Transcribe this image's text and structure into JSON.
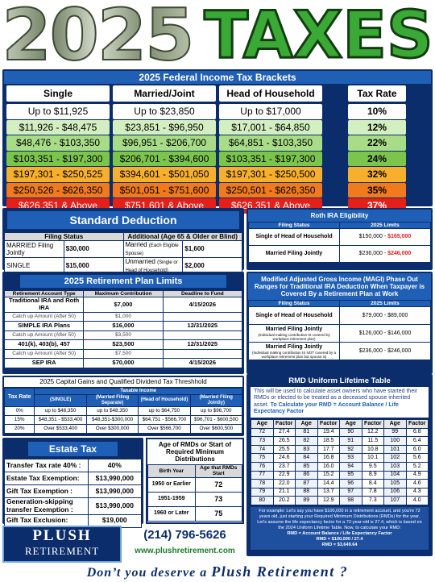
{
  "header": {
    "year": "2025",
    "title": "TAXES"
  },
  "brackets": {
    "title": "2025 Federal Income Tax Brackets",
    "columns": [
      "Single",
      "Married/Joint",
      "Head of Household",
      "Tax Rate"
    ],
    "rows": [
      [
        "Up to $11,925",
        "Up to $23,850",
        "Up to $17,000",
        "10%"
      ],
      [
        "$11,926 - $48,475",
        "$23,851 - $96,950",
        "$17,001 - $64,850",
        "12%"
      ],
      [
        "$48,476 - $103,350",
        "$96,951 - $206,700",
        "$64,851 - $103,350",
        "22%"
      ],
      [
        "$103,351 - $197,300",
        "$206,701 - $394,600",
        "$103,351 - $197,300",
        "24%"
      ],
      [
        "$197,301 - $250,525",
        "$394,601 - $501,050",
        "$197,301 - $250,500",
        "32%"
      ],
      [
        "$250,526 - $626,350",
        "$501,051 - $751,600",
        "$250,501 - $626,350",
        "35%"
      ],
      [
        "$626,351 & Above",
        "$751,601 & Above",
        "$626,351 & Above",
        "37%"
      ]
    ]
  },
  "standard_deduction": {
    "title": "Standard Deduction",
    "columns": [
      "Filing Status",
      "Additional (Age 65 & Older or Blind)"
    ],
    "rows": [
      {
        "status": "MARRIED Filing Jointly",
        "amount": "$30,000",
        "additional_status": "Married",
        "additional_note": "(Each Eligible Spouse)",
        "additional_amount": "$1,600"
      },
      {
        "status": "SINGLE",
        "amount": "$15,000",
        "additional_status": "Unmarried",
        "additional_note": "(Single or Head of Household)",
        "additional_amount": "$2,000"
      }
    ]
  },
  "roth_ira": {
    "title": "Roth IRA Eligibility",
    "columns": [
      "Filing Status",
      "2025 Limits"
    ],
    "rows": [
      {
        "status": "Single of Head of Household",
        "limit_from": "$150,000 -",
        "limit_to": "$165,000"
      },
      {
        "status": "Married Filing Jointly",
        "limit_from": "$236,000 -",
        "limit_to": "$246,000"
      }
    ]
  },
  "retirement_limits": {
    "title": "2025 Retirement Plan Limits",
    "columns": [
      "Retirement Account Type",
      "Maximum Contribution",
      "Deadline to Fund"
    ],
    "rows": [
      {
        "account": "Traditional IRA and Roth IRA",
        "max": "$7,000",
        "deadline": "4/15/2026"
      },
      {
        "account": "Catch up Amount (After 50)",
        "max": "$1,000"
      },
      {
        "account": "SIMPLE IRA Plans",
        "max": "$16,000",
        "deadline": "12/31/2025"
      },
      {
        "account": "Catch up Amount (After 50)",
        "max": "$3,500"
      },
      {
        "account": "401(k), 403(b), 457",
        "max": "$23,500",
        "deadline": "12/31/2025"
      },
      {
        "account": "Catch up Amount (After 50)",
        "max": "$7,500"
      },
      {
        "account": "SEP IRA",
        "max": "$70,000",
        "deadline": "4/15/2026"
      }
    ]
  },
  "magi": {
    "title": "Modified Adjusted Gross Income (MAGI) Phase Out Ranges for Traditional IRA Deduction When Taxpayer is Covered By a Retirement Plan at Work",
    "columns": [
      "Filing Status",
      "2025 Limits"
    ],
    "rows": [
      {
        "status": "Single of Head of Household",
        "limit": "$79,000 - $89,000"
      },
      {
        "status": "Married Filing Jointly",
        "note": "(Individual making contribution IS covered by workplace retirement plan)",
        "limit": "$126,000 - $146,000"
      },
      {
        "status": "Married Filing Jointly",
        "note": "(Individual making contribution IS NOT covered by a workplace retirement plan but spouse is)",
        "limit": "$236,000 - $246,000"
      }
    ]
  },
  "capital_gains": {
    "title": "2025 Capital Gains and Qualified Dividend Tax Threshhold",
    "group": "Taxable Income",
    "columns": [
      "Tax Rate",
      "(SINGLE)",
      "(Married Filing Separate)",
      "(Head of Household)",
      "(Married Filing Jointly)"
    ],
    "rows": [
      [
        "0%",
        "up to $48,350",
        "up to $48,350",
        "up to $64,750",
        "up to $96,700"
      ],
      [
        "15%",
        "$48,351 - $533,400",
        "$48,351-$300,000",
        "$64,751 - $566,700",
        "$96,701 - $600,500"
      ],
      [
        "20%",
        "Over $533,400",
        "Over $300,000",
        "Over $566,700",
        "Over $600,500"
      ]
    ]
  },
  "rmd_table": {
    "title": "RMD Uniform Lifetime Table",
    "intro": "This will be used to calculate asset owners who have started their RMDs or elected to be treated as a deceased spouse inherited asset.",
    "to_calculate": "To Calculate your RMD =",
    "formula": "Account Balance / Life Expectancy Factor",
    "columns": [
      "Age",
      "Factor"
    ],
    "groups": [
      [
        [
          "72",
          "27.4"
        ],
        [
          "73",
          "26.5"
        ],
        [
          "74",
          "25.5"
        ],
        [
          "75",
          "24.6"
        ],
        [
          "76",
          "23.7"
        ],
        [
          "77",
          "22.9"
        ],
        [
          "78",
          "22.0"
        ],
        [
          "79",
          "21.1"
        ],
        [
          "80",
          "20.2"
        ]
      ],
      [
        [
          "81",
          "19.4"
        ],
        [
          "82",
          "18.5"
        ],
        [
          "83",
          "17.7"
        ],
        [
          "84",
          "16.8"
        ],
        [
          "85",
          "16.0"
        ],
        [
          "86",
          "15.2"
        ],
        [
          "87",
          "14.4"
        ],
        [
          "88",
          "13.7"
        ],
        [
          "89",
          "12.9"
        ]
      ],
      [
        [
          "90",
          "12.2"
        ],
        [
          "91",
          "11.5"
        ],
        [
          "92",
          "10.8"
        ],
        [
          "93",
          "10.1"
        ],
        [
          "94",
          "9.5"
        ],
        [
          "95",
          "8.9"
        ],
        [
          "96",
          "8.4"
        ],
        [
          "97",
          "7.8"
        ],
        [
          "98",
          "7.3"
        ]
      ],
      [
        [
          "99",
          "6.8"
        ],
        [
          "100",
          "6.4"
        ],
        [
          "101",
          "6.0"
        ],
        [
          "102",
          "5.6"
        ],
        [
          "103",
          "5.2"
        ],
        [
          "104",
          "4.9"
        ],
        [
          "105",
          "4.6"
        ],
        [
          "106",
          "4.3"
        ],
        [
          "107",
          "4.0"
        ]
      ]
    ],
    "example": [
      "For example: Let's say you have $100,000 in a retirement account, and you're 72 years old, just starting your Required Minimum Distributions (RMDs) for the year.",
      "Let's assume the life expectancy factor for a 72-year-old is 27.4, which is based on the 2024 Uniform Lifetime Table. Now, to calculate your RMD:",
      "RMD = Account Balance / Life Expectancy Factor",
      "RMD = $100,000 / 27.4",
      "RMD = $3,649.64"
    ]
  },
  "estate_tax": {
    "title": "Estate Tax",
    "rows": [
      [
        "Transfer Tax rate 40% :",
        "40%"
      ],
      [
        "Estate Tax Exemption:",
        "$13,990,000"
      ],
      [
        "Gift Tax Exemption :",
        "$13,990,000"
      ],
      [
        "Generation-skipping transfer Exemption :",
        "$13,990,000"
      ],
      [
        "Gift Tax Exclusion:",
        "$19,000"
      ]
    ]
  },
  "rmd_age": {
    "title": "Age of RMDs or Start of Required Minimum Distributions",
    "columns": [
      "Birth Year",
      "Age that RMDs Start"
    ],
    "rows": [
      [
        "1950 or Earlier",
        "72"
      ],
      [
        "1951-1959",
        "73"
      ],
      [
        "1960 or Later",
        "75"
      ]
    ]
  },
  "footer": {
    "logo_line1": "PLUSH",
    "logo_line2": "RETIREMENT",
    "phone": "(214) 796-5626",
    "url": "www.plushretirement.com",
    "tagline_start": "Don’t you deserve a",
    "tagline_end": "Plush Retirement ?"
  }
}
